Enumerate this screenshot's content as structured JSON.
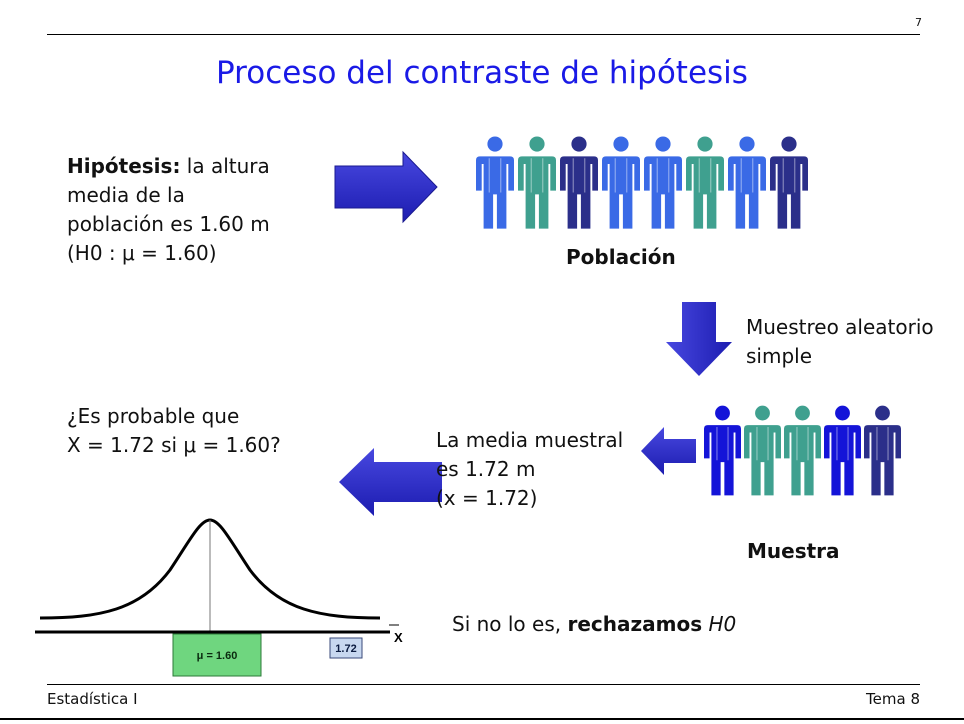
{
  "page_number": "7",
  "title": "Proceso del contraste de hipótesis",
  "hypothesis": {
    "bold": "Hipótesis:",
    "line1": " la altura",
    "line2": "media de la",
    "line3": "población es 1.60 m",
    "formula": "(H0 : μ = 1.60)"
  },
  "population_label": "Población",
  "sampling_label_line1": "Muestreo aleatorio",
  "sampling_label_line2": "simple",
  "question": {
    "line1": "¿Es probable que",
    "line2": "X = 1.72 si μ = 1.60?"
  },
  "sample_mean": {
    "line1": "La media muestral",
    "line2": "es 1.72 m",
    "line3": "(x = 1.72)"
  },
  "sample_label": "Muestra",
  "conclusion": {
    "prefix": "Si no lo es, ",
    "bold": "rechazamos",
    "suffix": "H0"
  },
  "curve": {
    "mu_label": "μ = 1.60",
    "value_label": "1.72",
    "axis_label": "X"
  },
  "footer": {
    "left": "Estadística I",
    "right": "Tema 8"
  },
  "colors": {
    "title": "#1a1ae6",
    "arrow": "#2a2acc",
    "person_blue": "#3a6ae6",
    "person_teal": "#3fa08f",
    "person_navy": "#2b2f8a",
    "person_royal": "#1414d8",
    "mu_box": "#6fd67f",
    "value_box": "#c8d8f0"
  },
  "population_people": [
    "blue",
    "teal",
    "navy",
    "blue",
    "blue",
    "teal",
    "blue",
    "navy"
  ],
  "sample_people": [
    "royal",
    "teal",
    "teal",
    "royal",
    "navy"
  ]
}
